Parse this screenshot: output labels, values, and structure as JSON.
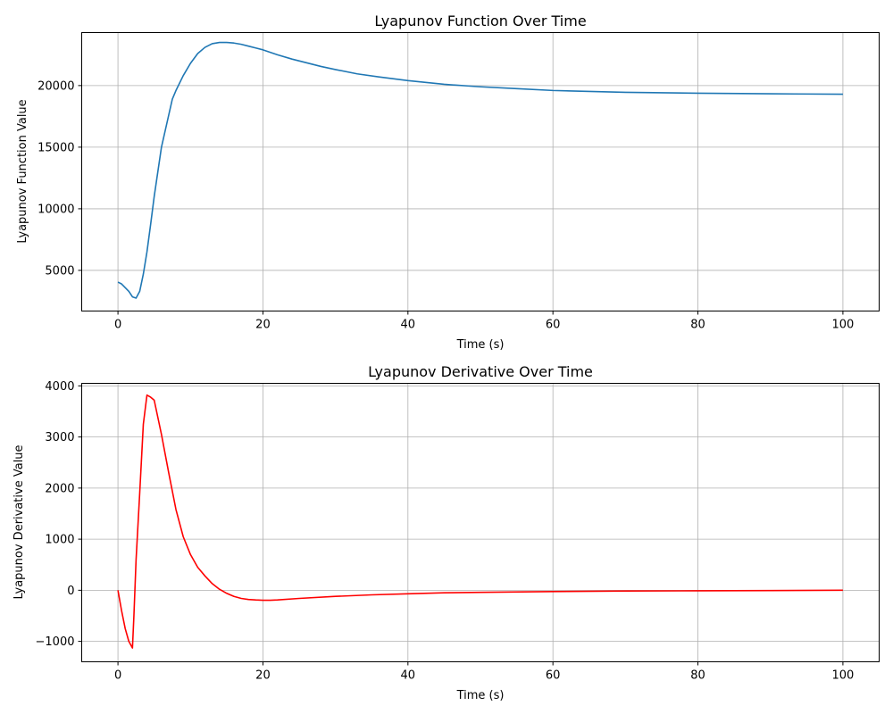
{
  "chart_data": [
    {
      "type": "line",
      "title": "Lyapunov Function Over Time",
      "xlabel": "Time (s)",
      "ylabel": "Lyapunov Function Value",
      "xlim": [
        -5,
        105
      ],
      "ylim": [
        1700,
        24300
      ],
      "xticks": [
        0,
        20,
        40,
        60,
        80,
        100
      ],
      "xtick_labels": [
        "0",
        "20",
        "40",
        "60",
        "80",
        "100"
      ],
      "yticks": [
        5000,
        10000,
        15000,
        20000
      ],
      "ytick_labels": [
        "5000",
        "10000",
        "15000",
        "20000"
      ],
      "grid": true,
      "series": [
        {
          "color": "#1f77b4",
          "x": [
            0,
            0.5,
            1,
            1.5,
            2,
            2.5,
            3,
            3.5,
            4,
            4.5,
            5,
            6,
            7,
            7.5,
            8,
            9,
            10,
            11,
            12,
            13,
            14,
            15,
            16,
            17,
            18,
            19,
            20,
            22,
            24,
            26,
            28,
            30,
            33,
            36,
            40,
            45,
            50,
            55,
            60,
            70,
            80,
            90,
            100
          ],
          "y": [
            4050,
            3900,
            3600,
            3300,
            2850,
            2750,
            3300,
            4700,
            6500,
            8700,
            11000,
            15000,
            17600,
            18900,
            19600,
            20800,
            21800,
            22600,
            23100,
            23400,
            23500,
            23500,
            23450,
            23350,
            23200,
            23050,
            22900,
            22500,
            22150,
            21850,
            21550,
            21300,
            20950,
            20700,
            20400,
            20100,
            19900,
            19750,
            19600,
            19450,
            19380,
            19330,
            19300
          ]
        }
      ]
    },
    {
      "type": "line",
      "title": "Lyapunov Derivative Over Time",
      "xlabel": "Time (s)",
      "ylabel": "Lyapunov Derivative Value",
      "xlim": [
        -5,
        105
      ],
      "ylim": [
        -1400,
        4050
      ],
      "xticks": [
        0,
        20,
        40,
        60,
        80,
        100
      ],
      "xtick_labels": [
        "0",
        "20",
        "40",
        "60",
        "80",
        "100"
      ],
      "yticks": [
        -1000,
        0,
        1000,
        2000,
        3000,
        4000
      ],
      "ytick_labels": [
        "−1000",
        "0",
        "1000",
        "2000",
        "3000",
        "4000"
      ],
      "grid": true,
      "series": [
        {
          "color": "#ff0000",
          "x": [
            0,
            0.5,
            1,
            1.5,
            2,
            2.2,
            2.5,
            3,
            3.5,
            4,
            4.5,
            5,
            6,
            7,
            8,
            9,
            10,
            11,
            12,
            13,
            14,
            15,
            16,
            17,
            18,
            19,
            20,
            21,
            22,
            25,
            30,
            35,
            40,
            45,
            50,
            60,
            70,
            80,
            90,
            100
          ],
          "y": [
            0,
            -400,
            -750,
            -1000,
            -1130,
            -500,
            600,
            1900,
            3250,
            3820,
            3780,
            3720,
            3050,
            2300,
            1580,
            1050,
            700,
            450,
            280,
            130,
            20,
            -60,
            -120,
            -160,
            -180,
            -190,
            -195,
            -195,
            -190,
            -160,
            -120,
            -90,
            -70,
            -50,
            -40,
            -25,
            -15,
            -10,
            -5,
            0
          ]
        }
      ]
    }
  ]
}
